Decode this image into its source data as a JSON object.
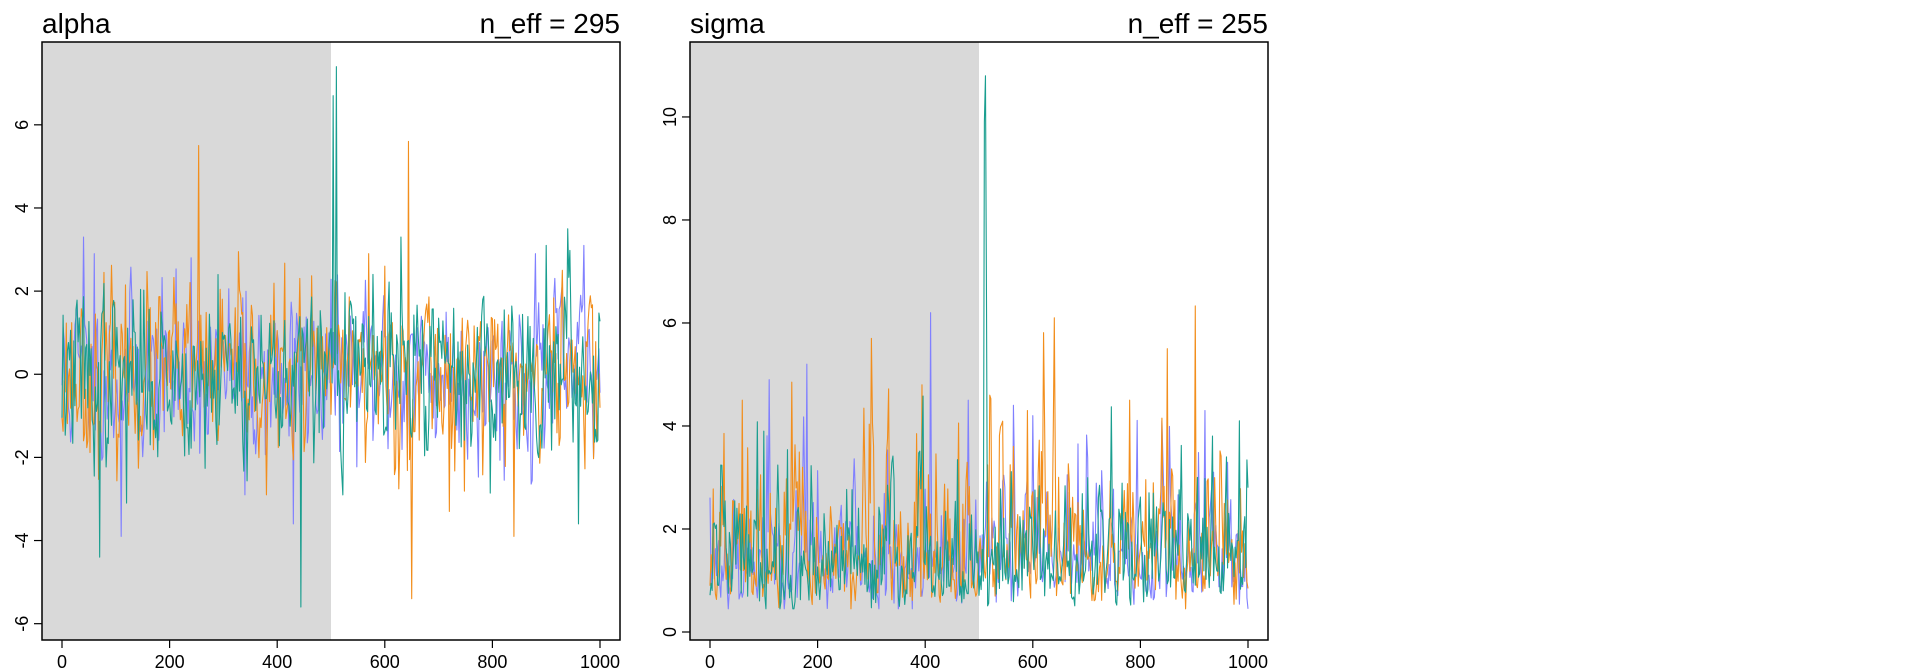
{
  "chart_data": [
    {
      "type": "line",
      "title": "alpha",
      "annotation": "n_eff = 295",
      "xlim": [
        0,
        1000
      ],
      "ylim": [
        -6.2,
        7.8
      ],
      "xticks": [
        0,
        200,
        400,
        600,
        800,
        1000
      ],
      "yticks": [
        -6,
        -4,
        -2,
        0,
        2,
        4,
        6
      ],
      "warmup": [
        0,
        500
      ],
      "grid": false,
      "series": [
        {
          "color": "#8080ff",
          "seed": 11,
          "center": 0.0,
          "scale": 1.0,
          "spikes": [
            [
              40,
              3.3
            ],
            [
              60,
              2.9
            ],
            [
              110,
              -3.9
            ],
            [
              240,
              2.8
            ],
            [
              340,
              -2.9
            ],
            [
              430,
              -3.6
            ],
            [
              880,
              2.9
            ],
            [
              970,
              3.1
            ]
          ]
        },
        {
          "color": "#f28e1c",
          "seed": 23,
          "center": 0.0,
          "scale": 1.0,
          "spikes": [
            [
              255,
              5.5
            ],
            [
              380,
              -2.9
            ],
            [
              570,
              2.9
            ],
            [
              600,
              2.6
            ],
            [
              645,
              5.6
            ],
            [
              650,
              -5.4
            ],
            [
              720,
              -3.3
            ],
            [
              840,
              -3.9
            ],
            [
              930,
              2.5
            ]
          ]
        },
        {
          "color": "#1a9e8f",
          "seed": 37,
          "center": 0.0,
          "scale": 1.0,
          "spikes": [
            [
              70,
              -4.4
            ],
            [
              120,
              -3.1
            ],
            [
              290,
              2.4
            ],
            [
              445,
              -5.6
            ],
            [
              505,
              6.7
            ],
            [
              510,
              7.4
            ],
            [
              520,
              -2.4
            ],
            [
              630,
              3.3
            ],
            [
              900,
              3.1
            ],
            [
              940,
              3.5
            ],
            [
              960,
              -3.6
            ]
          ]
        }
      ]
    },
    {
      "type": "line",
      "title": "sigma",
      "annotation": "n_eff = 255",
      "xlim": [
        0,
        1000
      ],
      "ylim": [
        0,
        11.3
      ],
      "xticks": [
        0,
        200,
        400,
        600,
        800,
        1000
      ],
      "yticks": [
        0,
        2,
        4,
        6,
        8,
        10
      ],
      "warmup": [
        0,
        500
      ],
      "grid": false,
      "series": [
        {
          "color": "#8080ff",
          "seed": 53,
          "center": 1.4,
          "scale": 0.55,
          "spikes": [
            [
              110,
              4.9
            ],
            [
              180,
              5.2
            ],
            [
              410,
              6.2
            ],
            [
              480,
              4.5
            ],
            [
              600,
              4.2
            ],
            [
              840,
              4.1
            ],
            [
              920,
              4.3
            ]
          ]
        },
        {
          "color": "#f28e1c",
          "seed": 67,
          "center": 1.4,
          "scale": 0.55,
          "spikes": [
            [
              60,
              4.5
            ],
            [
              300,
              5.7
            ],
            [
              395,
              4.8
            ],
            [
              590,
              4.3
            ],
            [
              640,
              6.1
            ],
            [
              780,
              4.5
            ],
            [
              850,
              5.5
            ]
          ]
        },
        {
          "color": "#1a9e8f",
          "seed": 79,
          "center": 1.4,
          "scale": 0.55,
          "spikes": [
            [
              100,
              3.9
            ],
            [
              510,
              9.9
            ],
            [
              512,
              10.8
            ],
            [
              515,
              6.3
            ],
            [
              960,
              3.4
            ],
            [
              985,
              4.1
            ]
          ]
        }
      ]
    }
  ]
}
